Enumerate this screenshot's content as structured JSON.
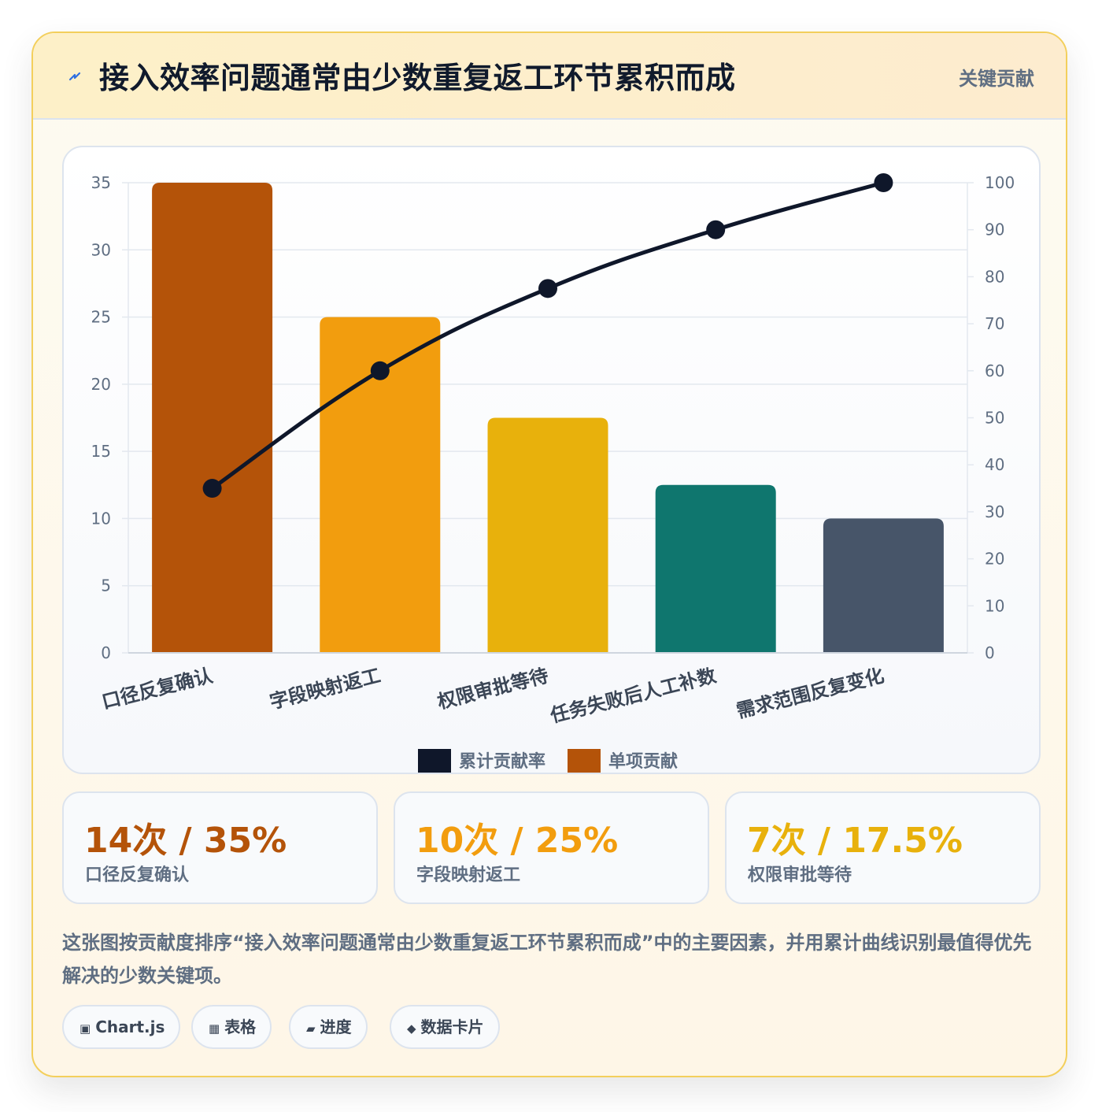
{
  "header": {
    "title": "接入效率问题通常由少数重复返工环节累积而成",
    "badge": "关键贡献",
    "icon": "bolt-icon"
  },
  "chart_data": {
    "type": "bar",
    "categories": [
      "口径反复确认",
      "字段映射返工",
      "权限审批等待",
      "任务失败后人工补数",
      "需求范围反复变化"
    ],
    "series": [
      {
        "name": "单项贡献",
        "type": "bar",
        "axis": "left",
        "values": [
          35,
          25,
          17.5,
          12.5,
          10
        ]
      },
      {
        "name": "累计贡献率",
        "type": "line",
        "axis": "right",
        "values": [
          35,
          60,
          77.5,
          90,
          100
        ]
      }
    ],
    "bar_colors": [
      "#b45309",
      "#f29d0e",
      "#e8b10c",
      "#0f766e",
      "#475569"
    ],
    "line_color": "#0f172a",
    "ylim": [
      0,
      35
    ],
    "yticks": [
      0,
      5,
      10,
      15,
      20,
      25,
      30,
      35
    ],
    "y2lim": [
      0,
      100
    ],
    "y2ticks": [
      0,
      10,
      20,
      30,
      40,
      50,
      60,
      70,
      80,
      90,
      100
    ],
    "grid": true,
    "legend": {
      "position": "bottom",
      "items": [
        {
          "label": "累计贡献率",
          "color": "#0f172a"
        },
        {
          "label": "单项贡献",
          "color": "#b45309"
        }
      ]
    }
  },
  "stats": [
    {
      "value": "14次 / 35%",
      "label": "口径反复确认",
      "color": "#b45309"
    },
    {
      "value": "10次 / 25%",
      "label": "字段映射返工",
      "color": "#f29d0e"
    },
    {
      "value": "7次 / 17.5%",
      "label": "权限审批等待",
      "color": "#e8b10c"
    }
  ],
  "description": "这张图按贡献度排序“接入效率问题通常由少数重复返工环节累积而成”中的主要因素，并用累计曲线识别最值得优先解决的少数关键项。",
  "tags": [
    {
      "icon": "▣",
      "icon_name": "chart-icon",
      "label": "Chart.js"
    },
    {
      "icon": "▦",
      "icon_name": "table-icon",
      "label": "表格"
    },
    {
      "icon": "▰",
      "icon_name": "progress-icon",
      "label": "进度"
    },
    {
      "icon": "◆",
      "icon_name": "diamond-icon",
      "label": "数据卡片"
    }
  ]
}
